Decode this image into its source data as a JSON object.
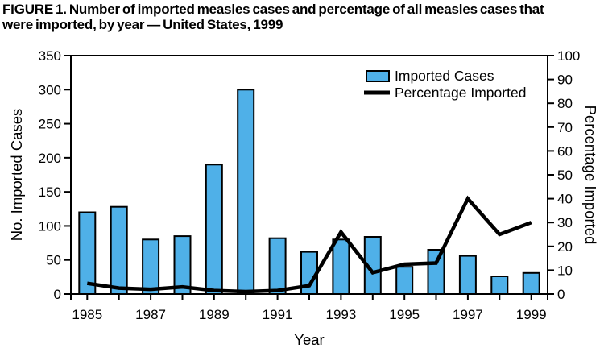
{
  "figure": {
    "title_lines": [
      "FIGURE 1. Number of imported measles cases and percentage of all measles cases that",
      "were imported, by year — United States, 1999"
    ]
  },
  "chart_data": {
    "type": "bar",
    "title": "FIGURE 1. Number of imported measles cases and percentage of all measles cases that were imported, by year — United States, 1999",
    "categories": [
      "1985",
      "1986",
      "1987",
      "1988",
      "1989",
      "1990",
      "1991",
      "1992",
      "1993",
      "1994",
      "1995",
      "1996",
      "1997",
      "1998",
      "1999"
    ],
    "series": [
      {
        "name": "Imported Cases",
        "type": "bar",
        "axis": "left",
        "values": [
          120,
          128,
          80,
          85,
          190,
          300,
          82,
          62,
          80,
          84,
          40,
          65,
          56,
          26,
          31
        ]
      },
      {
        "name": "Percentage Imported",
        "type": "line",
        "axis": "right",
        "values": [
          4.5,
          2.5,
          2,
          3,
          1.5,
          1,
          1.5,
          3.5,
          26,
          9,
          12.5,
          13,
          40,
          25,
          30
        ]
      }
    ],
    "xlabel": "Year",
    "ylabel_left": "No. Imported Cases",
    "ylabel_right": "Percentage Imported",
    "ylim_left": [
      0,
      350
    ],
    "ytick_step_left": 50,
    "ylim_right": [
      0,
      100
    ],
    "ytick_step_right": 10,
    "xtick_labels": [
      "1985",
      "1987",
      "1989",
      "1991",
      "1993",
      "1995",
      "1997",
      "1999"
    ],
    "legend": [
      "Imported Cases",
      "Percentage Imported"
    ],
    "legend_position": "top-right-inside",
    "grid": false,
    "colors": {
      "bar_fill": "#4FB0E8",
      "bar_stroke": "#000000",
      "line": "#000000",
      "axis": "#000000",
      "text": "#000000",
      "background": "#FFFFFF"
    }
  }
}
